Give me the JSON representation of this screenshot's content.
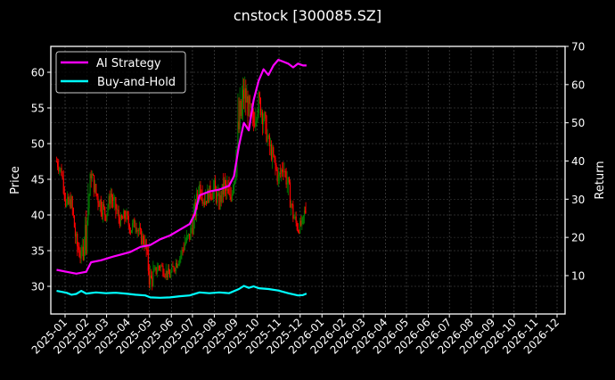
{
  "figure": {
    "title": "cnstock [300085.SZ]",
    "background": "#000000"
  },
  "chart_data": {
    "type": "line",
    "subtype": "candlestick with dual-axis return lines",
    "title": "cnstock [300085.SZ]",
    "xlabel": "",
    "ylabel": "Price",
    "ylabel_right": "Return",
    "ylim": [
      26.1,
      63.6
    ],
    "ylim_right": [
      0,
      70
    ],
    "yticks": [
      30,
      35,
      40,
      45,
      50,
      55,
      60
    ],
    "yticks_right": [
      10,
      20,
      30,
      40,
      50,
      60,
      70
    ],
    "xticks": [
      "2025-01",
      "2025-02",
      "2025-03",
      "2025-04",
      "2025-05",
      "2025-06",
      "2025-07",
      "2025-08",
      "2025-09",
      "2025-10",
      "2025-11",
      "2025-12",
      "2026-01",
      "2026-02",
      "2026-03",
      "2026-04",
      "2026-05",
      "2026-06",
      "2026-07",
      "2026-08",
      "2026-09",
      "2026-10",
      "2026-11",
      "2026-12"
    ],
    "grid": true,
    "legend": {
      "position": "upper left",
      "entries": [
        "AI Strategy",
        "Buy-and-Hold"
      ]
    },
    "colors": {
      "up": "#008000",
      "down": "#ff0000",
      "ai_strategy": "#ff00ff",
      "buy_and_hold": "#00ffff",
      "grid": "#555555",
      "axes": "#ffffff"
    },
    "price_series": {
      "name": "Price (close, approx. weekly)",
      "dates": [
        "2024-12-20",
        "2024-12-27",
        "2025-01-03",
        "2025-01-10",
        "2025-01-17",
        "2025-01-24",
        "2025-01-31",
        "2025-02-07",
        "2025-02-14",
        "2025-02-21",
        "2025-02-28",
        "2025-03-07",
        "2025-03-14",
        "2025-03-21",
        "2025-03-28",
        "2025-04-04",
        "2025-04-11",
        "2025-04-18",
        "2025-04-25",
        "2025-05-02",
        "2025-05-09",
        "2025-05-16",
        "2025-05-23",
        "2025-05-30",
        "2025-06-06",
        "2025-06-13",
        "2025-06-20",
        "2025-06-27",
        "2025-07-04",
        "2025-07-11",
        "2025-07-18",
        "2025-07-25",
        "2025-08-01",
        "2025-08-08",
        "2025-08-15",
        "2025-08-22",
        "2025-08-29",
        "2025-09-05",
        "2025-09-12",
        "2025-09-19",
        "2025-09-26",
        "2025-10-03",
        "2025-10-10",
        "2025-10-17",
        "2025-10-24",
        "2025-10-31",
        "2025-11-07",
        "2025-11-14",
        "2025-11-21",
        "2025-11-28",
        "2025-12-05",
        "2025-12-10"
      ],
      "close": [
        47.5,
        46.0,
        41.0,
        42.0,
        36.0,
        34.0,
        38.0,
        46.0,
        43.0,
        41.5,
        40.0,
        43.0,
        41.0,
        39.0,
        40.0,
        38.0,
        39.0,
        37.0,
        36.0,
        30.5,
        32.0,
        33.0,
        32.0,
        31.5,
        33.0,
        34.0,
        36.0,
        37.0,
        40.0,
        44.0,
        42.0,
        43.0,
        43.5,
        41.5,
        44.0,
        42.0,
        45.0,
        52.0,
        57.0,
        55.0,
        53.0,
        56.0,
        54.0,
        50.0,
        48.0,
        45.0,
        47.0,
        44.0,
        40.0,
        38.0,
        39.0,
        42.0
      ],
      "high": [
        49.5,
        48.0,
        46.0,
        43.5,
        39.0,
        36.5,
        48.0,
        47.0,
        45.0,
        44.0,
        42.5,
        44.5,
        43.0,
        41.0,
        42.0,
        40.5,
        40.5,
        39.5,
        38.0,
        36.0,
        34.0,
        34.5,
        34.0,
        33.5,
        35.0,
        36.0,
        38.5,
        40.0,
        44.0,
        46.5,
        45.0,
        46.0,
        47.0,
        45.0,
        48.0,
        47.0,
        52.0,
        62.0,
        61.5,
        58.0,
        56.0,
        58.0,
        56.5,
        53.0,
        50.0,
        48.0,
        49.0,
        47.0,
        43.0,
        40.5,
        41.0,
        43.5
      ],
      "low": [
        45.5,
        44.5,
        40.0,
        40.0,
        33.0,
        32.5,
        34.0,
        42.0,
        40.5,
        38.0,
        38.5,
        40.0,
        38.5,
        37.0,
        37.5,
        36.5,
        36.5,
        35.0,
        34.0,
        28.0,
        30.5,
        31.0,
        30.5,
        30.5,
        31.0,
        32.5,
        34.0,
        35.5,
        36.5,
        41.0,
        40.5,
        41.5,
        41.0,
        40.5,
        41.0,
        40.5,
        43.0,
        46.0,
        52.0,
        51.0,
        50.0,
        52.0,
        49.5,
        47.5,
        45.0,
        43.0,
        44.0,
        41.0,
        38.0,
        37.0,
        37.5,
        38.5
      ]
    },
    "series": [
      {
        "name": "AI Strategy",
        "axis": "right",
        "color": "#ff00ff",
        "dates": [
          "2024-12-20",
          "2025-01-03",
          "2025-01-17",
          "2025-01-31",
          "2025-02-07",
          "2025-02-21",
          "2025-03-07",
          "2025-03-21",
          "2025-04-04",
          "2025-04-18",
          "2025-05-02",
          "2025-05-16",
          "2025-05-30",
          "2025-06-13",
          "2025-06-27",
          "2025-07-04",
          "2025-07-11",
          "2025-07-25",
          "2025-08-08",
          "2025-08-22",
          "2025-08-29",
          "2025-09-05",
          "2025-09-12",
          "2025-09-19",
          "2025-09-26",
          "2025-10-03",
          "2025-10-10",
          "2025-10-17",
          "2025-10-24",
          "2025-10-31",
          "2025-11-07",
          "2025-11-14",
          "2025-11-21",
          "2025-11-28",
          "2025-12-05",
          "2025-12-10"
        ],
        "values": [
          11.5,
          11.0,
          10.5,
          11.0,
          13.5,
          14.0,
          14.8,
          15.5,
          16.2,
          17.5,
          18.0,
          19.5,
          20.5,
          22.0,
          23.5,
          26.0,
          31.0,
          32.0,
          32.5,
          33.5,
          36.0,
          44.0,
          50.0,
          48.0,
          56.0,
          61.0,
          64.0,
          62.5,
          65.0,
          66.5,
          66.0,
          65.5,
          64.5,
          65.5,
          65.0,
          65.0
        ]
      },
      {
        "name": "Buy-and-Hold",
        "axis": "right",
        "color": "#00ffff",
        "dates": [
          "2024-12-20",
          "2025-01-03",
          "2025-01-10",
          "2025-01-17",
          "2025-01-24",
          "2025-01-31",
          "2025-02-14",
          "2025-02-28",
          "2025-03-14",
          "2025-03-28",
          "2025-04-11",
          "2025-04-25",
          "2025-05-02",
          "2025-05-16",
          "2025-05-30",
          "2025-06-13",
          "2025-06-27",
          "2025-07-11",
          "2025-07-25",
          "2025-08-08",
          "2025-08-22",
          "2025-09-05",
          "2025-09-12",
          "2025-09-19",
          "2025-09-26",
          "2025-10-03",
          "2025-10-17",
          "2025-10-31",
          "2025-11-14",
          "2025-11-28",
          "2025-12-05",
          "2025-12-10"
        ],
        "values": [
          6.0,
          5.5,
          5.0,
          5.2,
          6.0,
          5.3,
          5.6,
          5.4,
          5.5,
          5.3,
          5.0,
          4.8,
          4.3,
          4.2,
          4.3,
          4.6,
          4.8,
          5.6,
          5.4,
          5.6,
          5.4,
          6.5,
          7.3,
          6.8,
          7.2,
          6.7,
          6.5,
          6.1,
          5.4,
          4.8,
          4.9,
          5.3
        ]
      }
    ]
  },
  "axes": {
    "left_label": "Price",
    "right_label": "Return",
    "left_ticks": [
      "30",
      "35",
      "40",
      "45",
      "50",
      "55",
      "60"
    ],
    "right_ticks": [
      "10",
      "20",
      "30",
      "40",
      "50",
      "60",
      "70"
    ],
    "x_ticks": [
      "2025-01",
      "2025-02",
      "2025-03",
      "2025-04",
      "2025-05",
      "2025-06",
      "2025-07",
      "2025-08",
      "2025-09",
      "2025-10",
      "2025-11",
      "2025-12",
      "2026-01",
      "2026-02",
      "2026-03",
      "2026-04",
      "2026-05",
      "2026-06",
      "2026-07",
      "2026-08",
      "2026-09",
      "2026-10",
      "2026-11",
      "2026-12"
    ]
  },
  "legend": {
    "items": [
      {
        "label": "AI Strategy",
        "color": "#ff00ff"
      },
      {
        "label": "Buy-and-Hold",
        "color": "#00ffff"
      }
    ]
  }
}
